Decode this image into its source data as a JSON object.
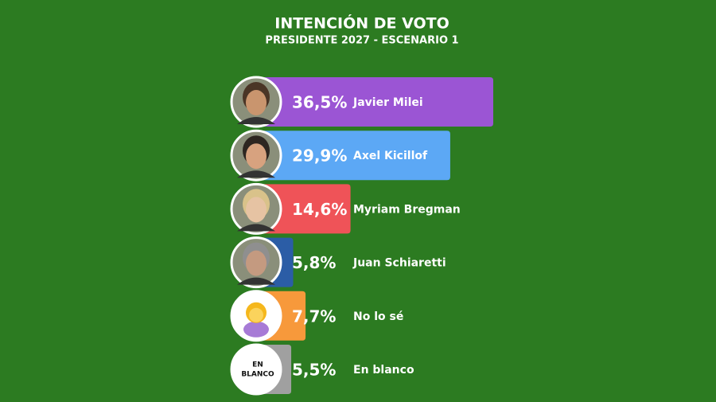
{
  "chart_data": {
    "type": "bar",
    "title": "INTENCIÓN DE VOTO",
    "subtitle": "PRESIDENTE 2027 - ESCENARIO 1",
    "categories": [
      "Javier Milei",
      "Axel Kicillof",
      "Myriam Bregman",
      "Juan Schiaretti",
      "No lo sé",
      "En blanco"
    ],
    "values": [
      36.5,
      29.9,
      14.6,
      5.8,
      7.7,
      5.5
    ],
    "value_labels": [
      "36,5%",
      "29,9%",
      "14,6%",
      "5,8%",
      "7,7%",
      "5,5%"
    ],
    "colors": [
      "#9b55d4",
      "#5ca8f5",
      "#ef5358",
      "#2b5da6",
      "#f7993b",
      "#a0a0a0"
    ],
    "blank_icon_text": [
      "EN",
      "BLANCO"
    ]
  }
}
